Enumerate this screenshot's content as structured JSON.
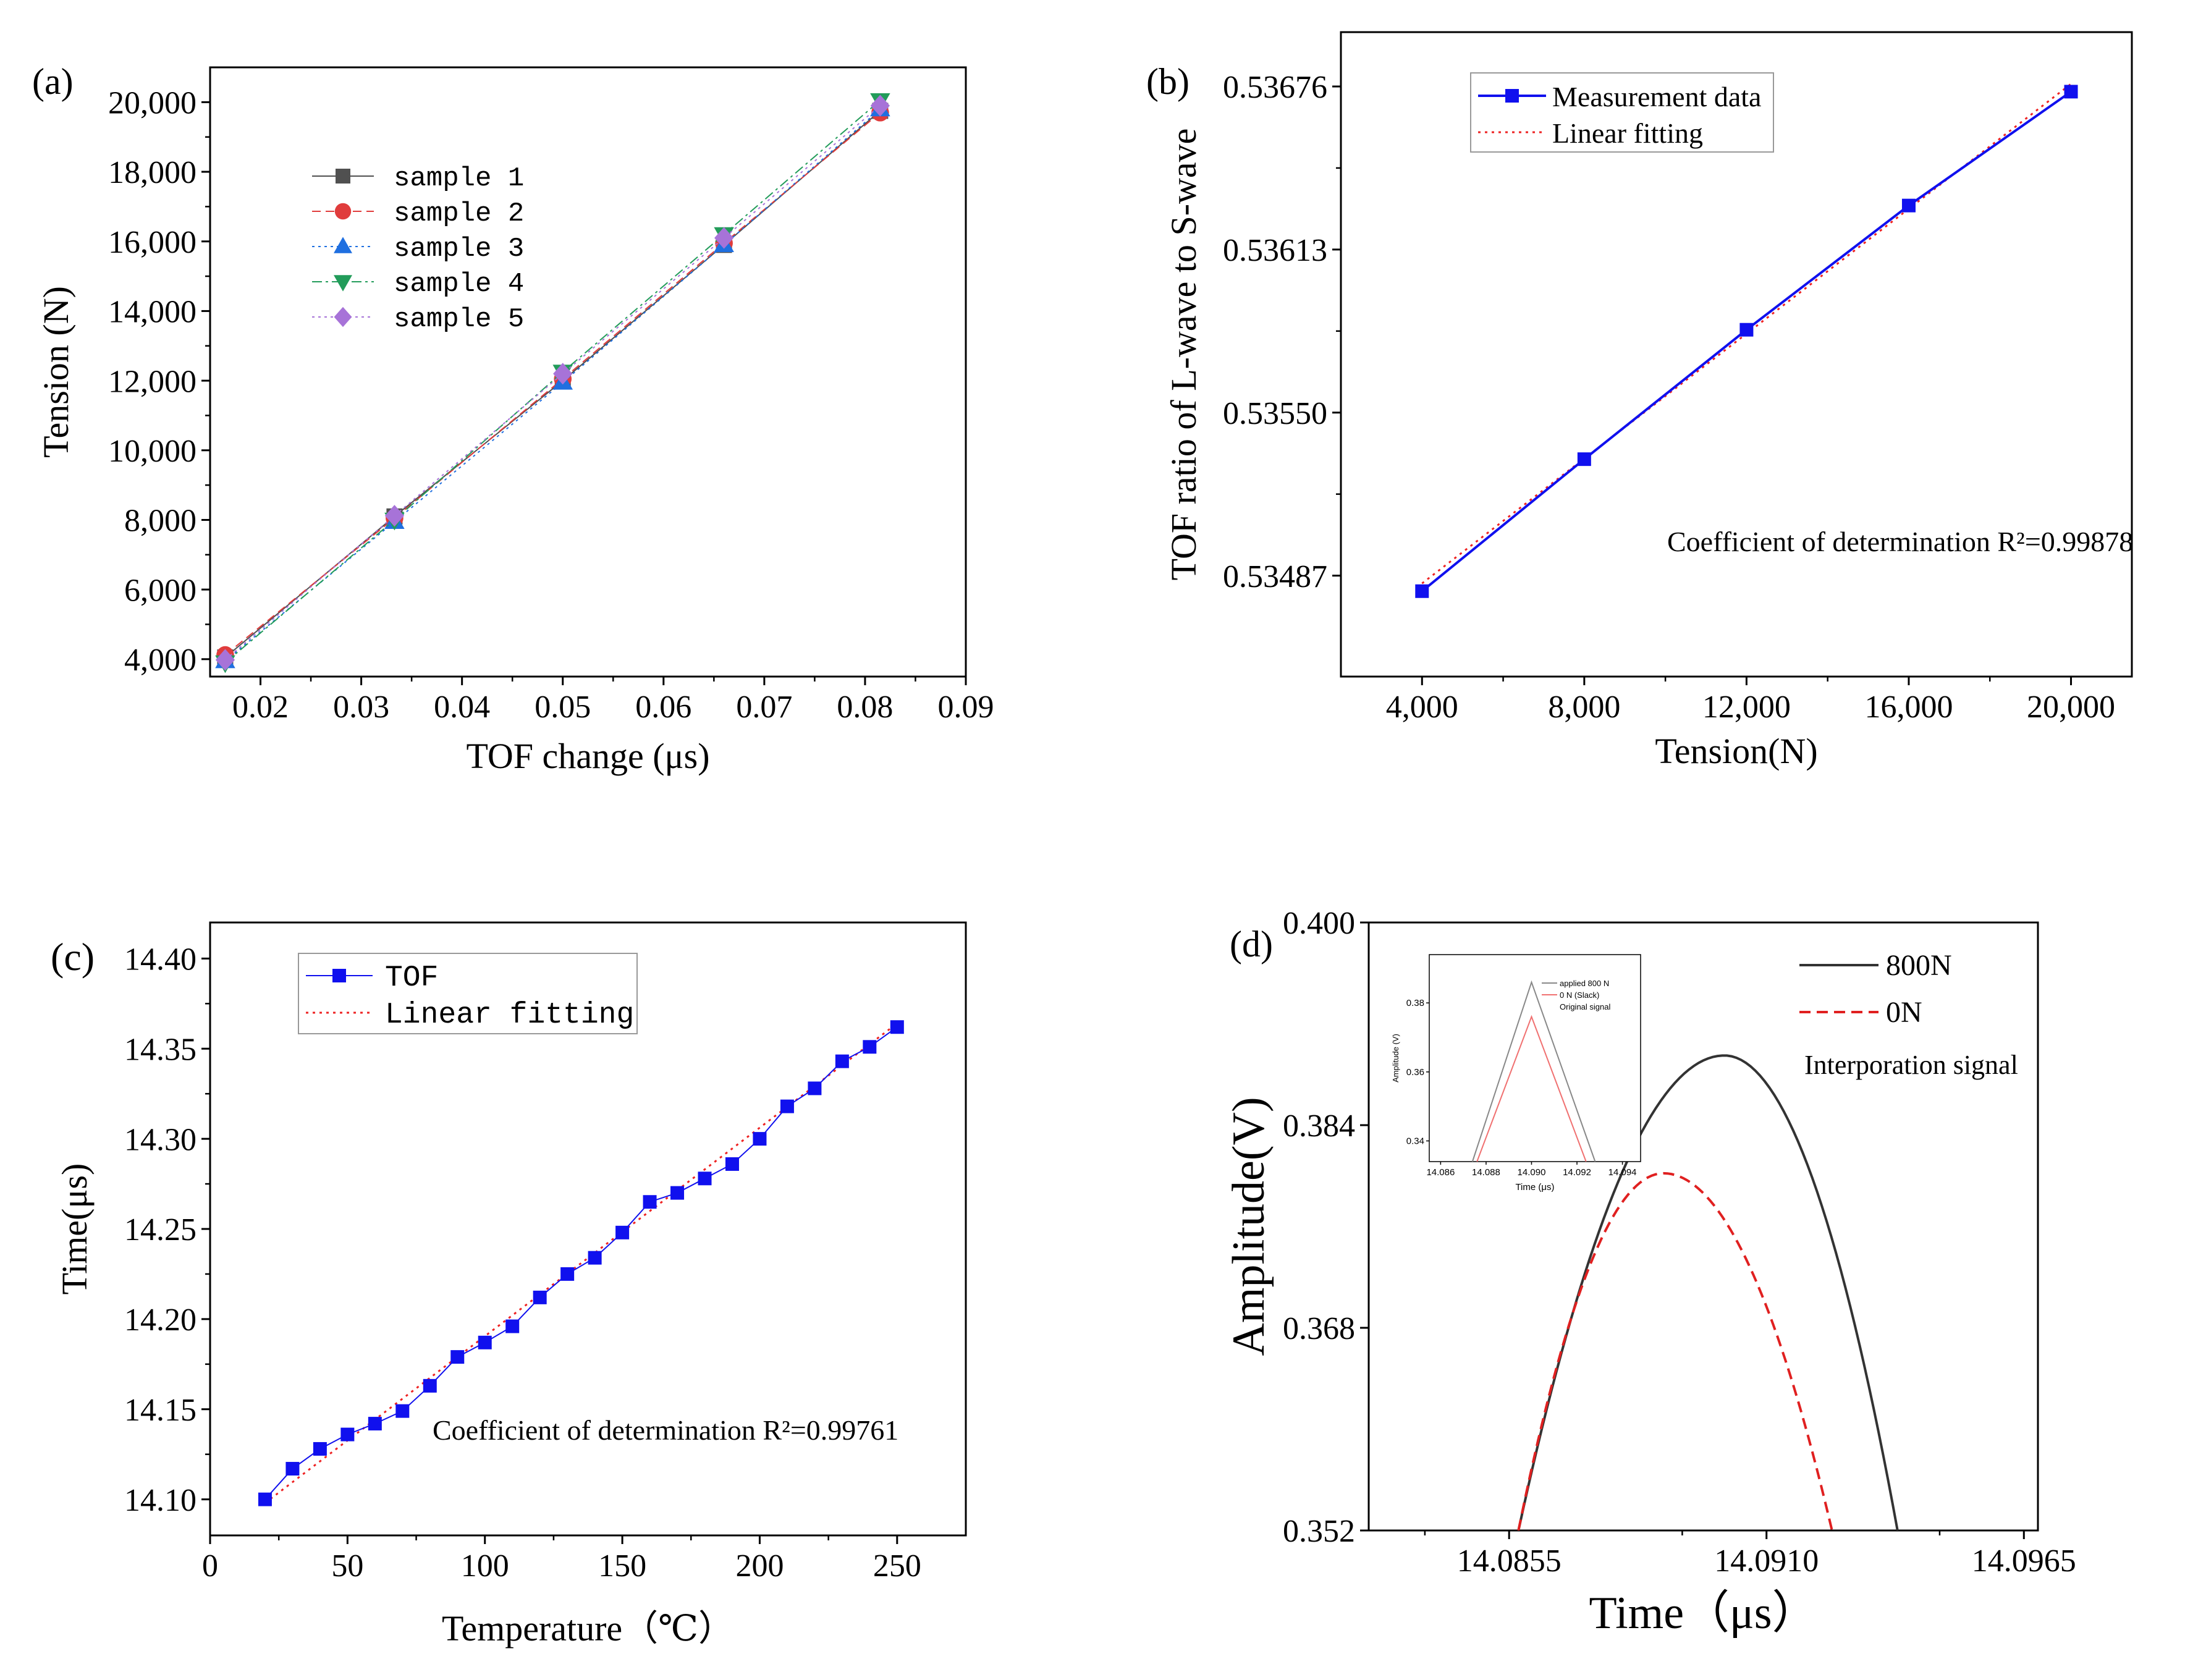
{
  "chart_data": [
    {
      "id": "a",
      "panel_label": "(a)",
      "type": "line",
      "xlabel": "TOF change (μs)",
      "ylabel": "Tension (N)",
      "xlim": [
        0.015,
        0.09
      ],
      "ylim": [
        3500,
        21000
      ],
      "xticks": [
        0.02,
        0.03,
        0.04,
        0.05,
        0.06,
        0.07,
        0.08,
        0.09
      ],
      "xtick_labels": [
        "0.02",
        "0.03",
        "0.04",
        "0.05",
        "0.06",
        "0.07",
        "0.08",
        "0.09"
      ],
      "yticks": [
        4000,
        6000,
        8000,
        10000,
        12000,
        14000,
        16000,
        18000,
        20000
      ],
      "ytick_labels": [
        "4,000",
        "6,000",
        "8,000",
        "10,000",
        "12,000",
        "14,000",
        "16,000",
        "18,000",
        "20,000"
      ],
      "legend_location": "upper-left",
      "series": [
        {
          "name": "sample 1",
          "color": "#505050",
          "marker": "square",
          "line": "solid",
          "x": [
            0.0165,
            0.0333,
            0.05,
            0.066,
            0.0815
          ],
          "y": [
            4050,
            8100,
            12000,
            15900,
            19750
          ]
        },
        {
          "name": "sample 2",
          "color": "#e03c3c",
          "marker": "circle",
          "line": "dash",
          "x": [
            0.0165,
            0.0333,
            0.05,
            0.066,
            0.0815
          ],
          "y": [
            4120,
            8050,
            12050,
            15950,
            19700
          ]
        },
        {
          "name": "sample 3",
          "color": "#1f6fe0",
          "marker": "triangle-up",
          "line": "dot",
          "x": [
            0.0165,
            0.0333,
            0.05,
            0.066,
            0.0815
          ],
          "y": [
            3950,
            7950,
            11950,
            15900,
            19800
          ]
        },
        {
          "name": "sample 4",
          "color": "#229c5a",
          "marker": "triangle-down",
          "line": "dashdot",
          "x": [
            0.0165,
            0.0333,
            0.05,
            0.066,
            0.0815
          ],
          "y": [
            3900,
            8000,
            12250,
            16200,
            20050
          ]
        },
        {
          "name": "sample 5",
          "color": "#a773d8",
          "marker": "diamond",
          "line": "dot",
          "x": [
            0.0165,
            0.0333,
            0.05,
            0.066,
            0.0815
          ],
          "y": [
            3980,
            8120,
            12200,
            16100,
            19900
          ]
        }
      ]
    },
    {
      "id": "b",
      "panel_label": "(b)",
      "type": "line",
      "xlabel": "Tension(N)",
      "ylabel": "TOF ratio of L-wave to S-wave",
      "xlim": [
        2000,
        21500
      ],
      "ylim": [
        0.53448,
        0.53697
      ],
      "xticks": [
        4000,
        8000,
        12000,
        16000,
        20000
      ],
      "xtick_labels": [
        "4,000",
        "8,000",
        "12,000",
        "16,000",
        "20,000"
      ],
      "yticks": [
        0.53487,
        0.5355,
        0.53613,
        0.53676
      ],
      "ytick_labels": [
        "0.53487",
        "0.53550",
        "0.53613",
        "0.53676"
      ],
      "annotation": "Coefficient of determination R²=0.99878",
      "legend_location": "upper-left",
      "series": [
        {
          "name": "Measurement data",
          "color": "#1010ee",
          "marker": "square",
          "line": "solid",
          "x": [
            4000,
            8000,
            12000,
            16000,
            20000
          ],
          "y": [
            0.53481,
            0.53532,
            0.53582,
            0.5363,
            0.53674
          ]
        }
      ],
      "fit": {
        "name": "Linear fitting",
        "color": "#ee2222",
        "line": "dot",
        "x": [
          4000,
          20000
        ],
        "y": [
          0.53484,
          0.53677
        ]
      }
    },
    {
      "id": "c",
      "panel_label": "(c)",
      "type": "line",
      "xlabel": "Temperature（℃）",
      "ylabel": "Time(μs)",
      "xlim": [
        0,
        275
      ],
      "ylim": [
        14.08,
        14.42
      ],
      "xticks": [
        0,
        50,
        100,
        150,
        200,
        250
      ],
      "xtick_labels": [
        "0",
        "50",
        "100",
        "150",
        "200",
        "250"
      ],
      "yticks": [
        14.1,
        14.15,
        14.2,
        14.25,
        14.3,
        14.35,
        14.4
      ],
      "ytick_labels": [
        "14.10",
        "14.15",
        "14.20",
        "14.25",
        "14.30",
        "14.35",
        "14.40"
      ],
      "annotation": "Coefficient of determination R²=0.99761",
      "legend_location": "upper-left",
      "series": [
        {
          "name": "TOF",
          "color": "#1010ee",
          "marker": "square",
          "line": "solid",
          "x": [
            20,
            30,
            40,
            50,
            60,
            70,
            80,
            90,
            100,
            110,
            120,
            130,
            140,
            150,
            160,
            170,
            180,
            190,
            200,
            210,
            220,
            230,
            240,
            250
          ],
          "y": [
            14.1,
            14.117,
            14.128,
            14.136,
            14.142,
            14.149,
            14.163,
            14.179,
            14.187,
            14.196,
            14.212,
            14.225,
            14.234,
            14.248,
            14.265,
            14.27,
            14.278,
            14.286,
            14.3,
            14.318,
            14.328,
            14.343,
            14.351,
            14.362
          ]
        }
      ],
      "fit": {
        "name": "Linear fitting",
        "color": "#ee2222",
        "line": "dot",
        "x": [
          20,
          250
        ],
        "y": [
          14.098,
          14.364
        ]
      }
    },
    {
      "id": "d",
      "panel_label": "(d)",
      "type": "line",
      "xlabel": "Time（μs）",
      "ylabel": "Amplitude(V)",
      "xlim": [
        14.0825,
        14.0968
      ],
      "ylim": [
        0.352,
        0.4
      ],
      "xticks": [
        14.0855,
        14.091,
        14.0965
      ],
      "xtick_labels": [
        "14.0855",
        "14.0910",
        "14.0965"
      ],
      "minor_xticks": [
        14.0837,
        14.0892,
        14.0947
      ],
      "yticks": [
        0.352,
        0.368,
        0.384,
        0.4
      ],
      "ytick_labels": [
        "0.352",
        "0.368",
        "0.384",
        "0.400"
      ],
      "annotation": "Interporation signal",
      "legend_location": "upper-right",
      "series": [
        {
          "name": "800N",
          "color": "#333333",
          "line": "solid",
          "shape": "parabola",
          "x_start": 14.0857,
          "x_end": 14.0938,
          "x_peak": 14.0901,
          "y_peak": 0.3895
        },
        {
          "name": "0N",
          "color": "#e02020",
          "line": "dash",
          "shape": "parabola",
          "x_start": 14.0857,
          "x_end": 14.0924,
          "x_peak": 14.0888,
          "y_peak": 0.3802
        }
      ],
      "inset": {
        "xlabel": "Time (μs)",
        "ylabel": "Amplitude (V)",
        "xlim": [
          14.0855,
          14.0948
        ],
        "ylim": [
          0.334,
          0.394
        ],
        "xticks": [
          14.086,
          14.088,
          14.09,
          14.092,
          14.094
        ],
        "xtick_labels": [
          "14.086",
          "14.088",
          "14.090",
          "14.092",
          "14.094"
        ],
        "yticks": [
          0.34,
          0.36,
          0.38
        ],
        "ytick_labels": [
          "0.34",
          "0.36",
          "0.38"
        ],
        "legend": [
          "applied 800 N",
          "0 N (Slack)",
          "Original signal"
        ],
        "series": [
          {
            "name": "applied 800 N",
            "color": "#888888",
            "x": [
              14.0874,
              14.09,
              14.0928
            ],
            "y": [
              0.334,
              0.386,
              0.334
            ]
          },
          {
            "name": "0 N (Slack)",
            "color": "#f07070",
            "x": [
              14.0876,
              14.09,
              14.0924
            ],
            "y": [
              0.334,
              0.376,
              0.334
            ]
          }
        ]
      }
    }
  ]
}
